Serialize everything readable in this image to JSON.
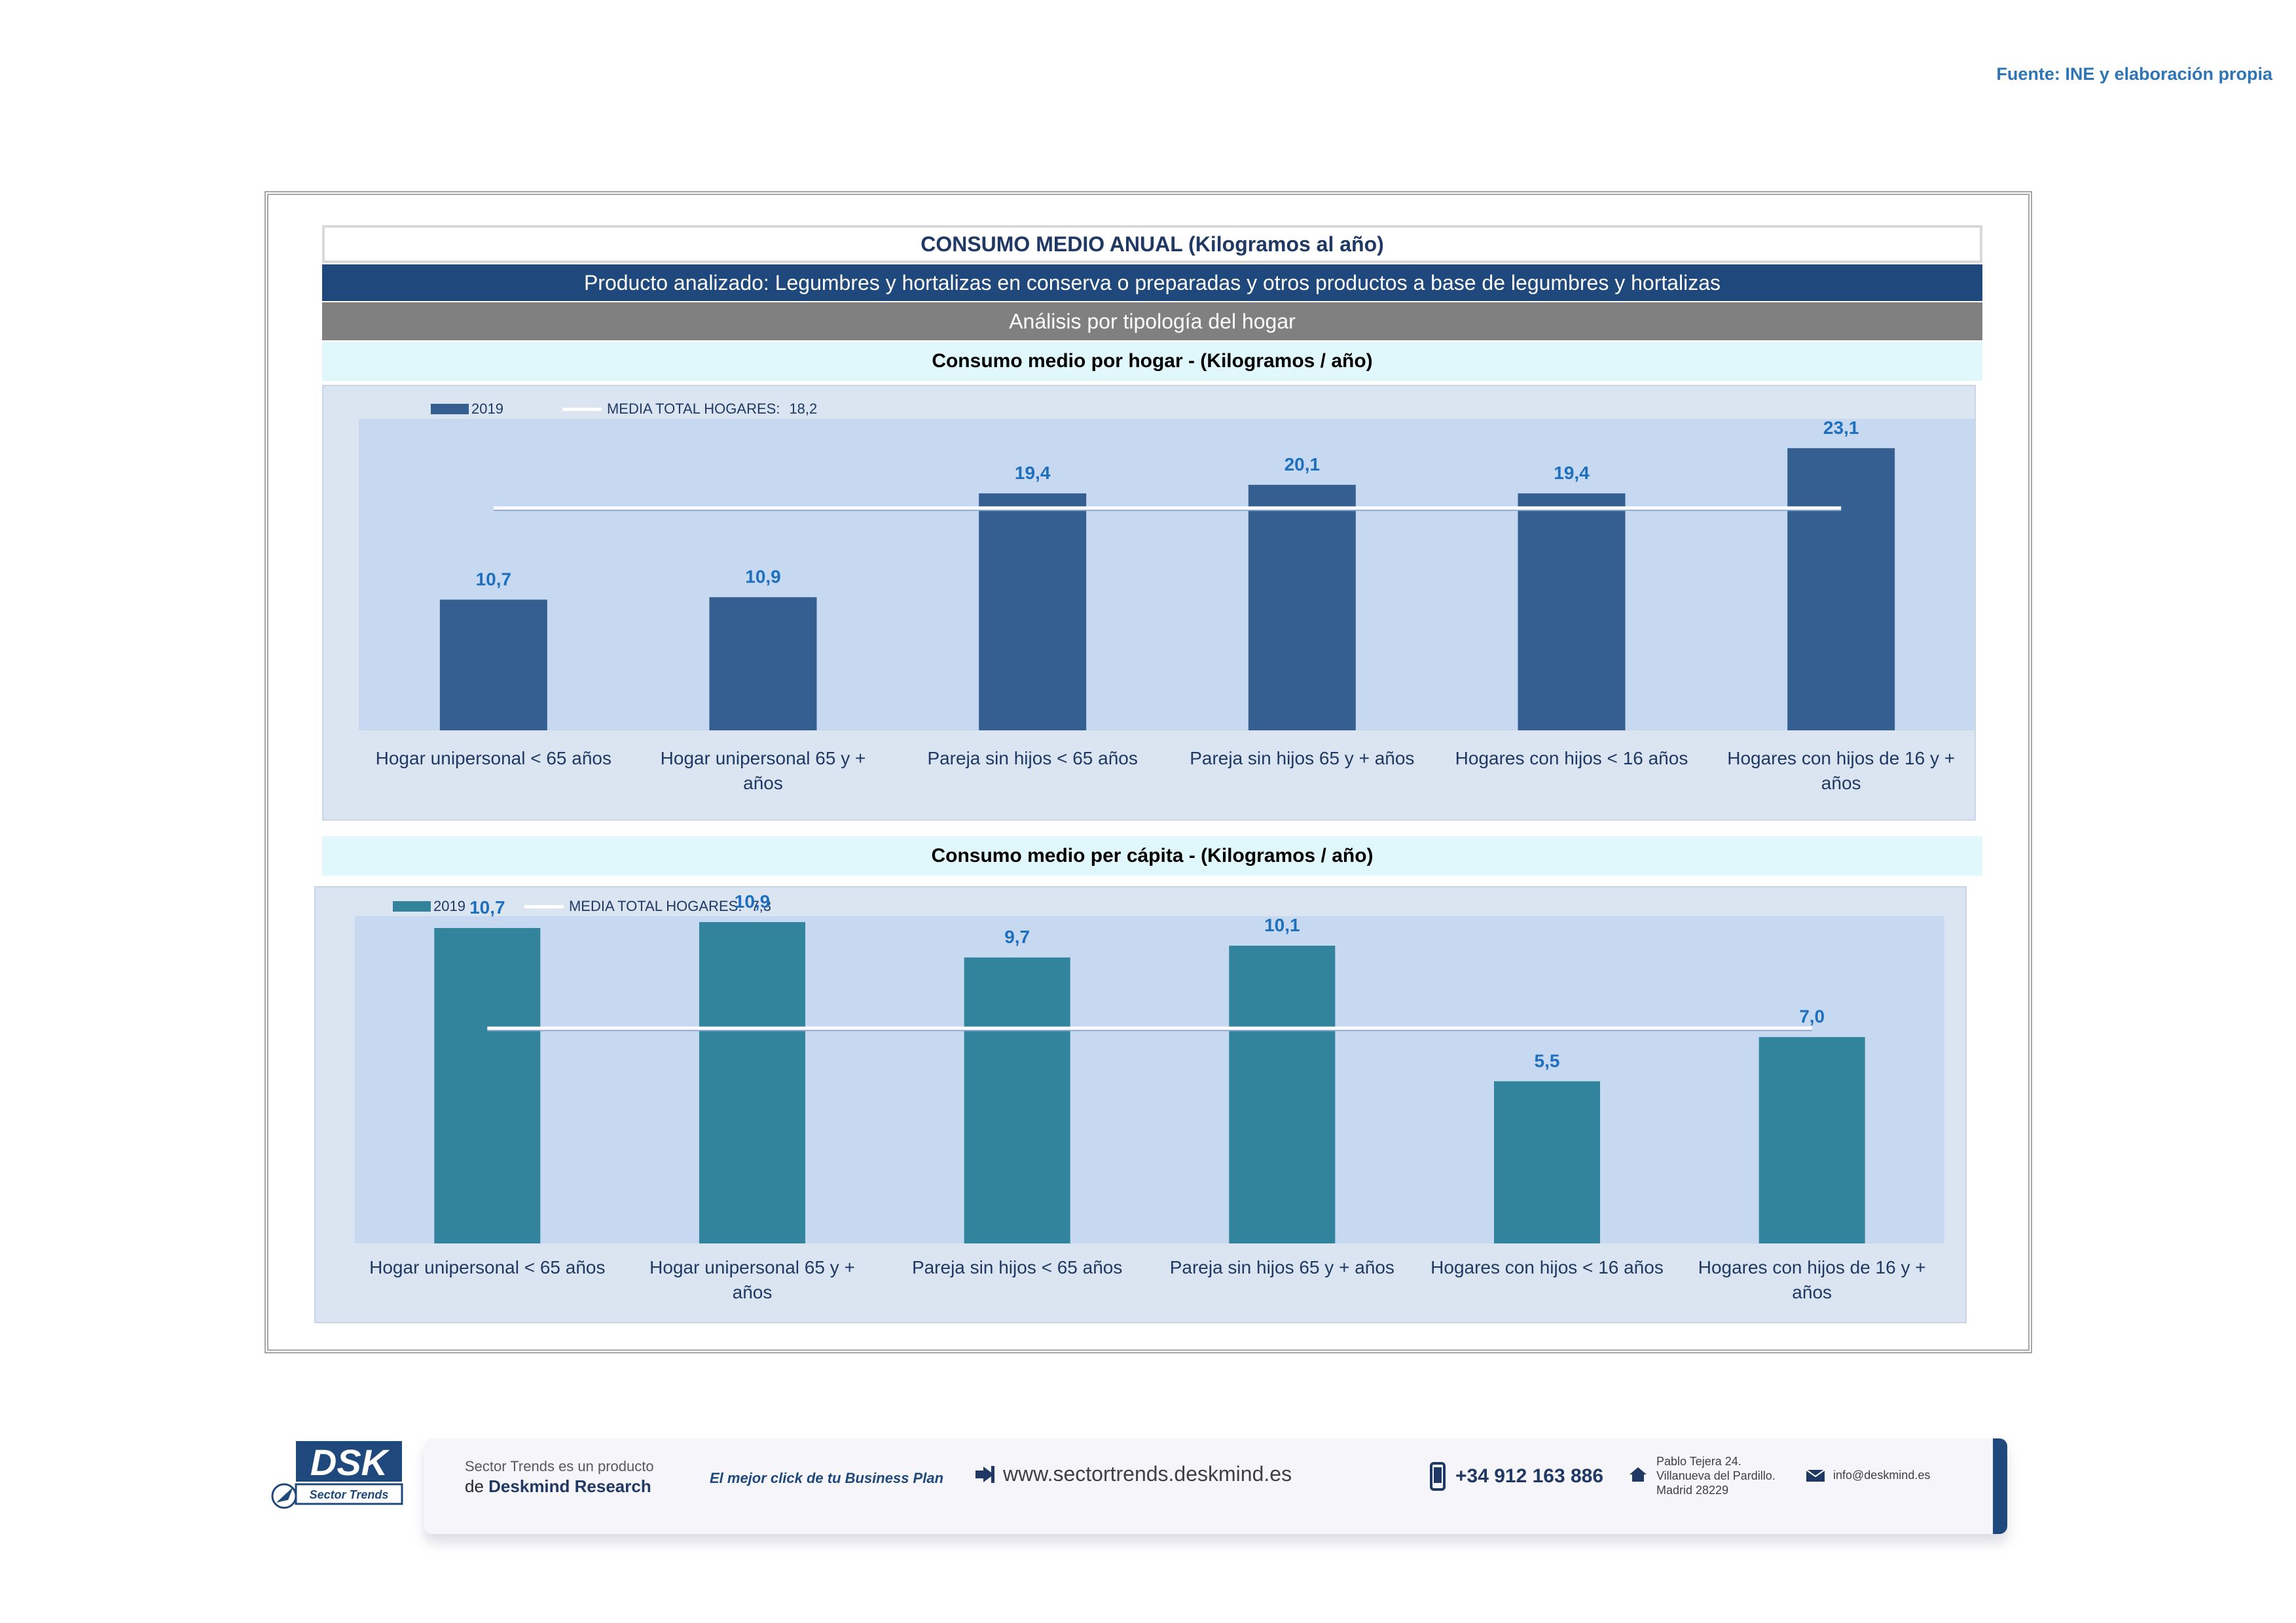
{
  "source": "Fuente: INE y elaboración propia",
  "header": {
    "title": "CONSUMO MEDIO ANUAL (Kilogramos al año)",
    "product": "Producto analizado: Legumbres y hortalizas en conserva o preparadas y otros productos a base de legumbres y hortalizas",
    "analysis": "Análisis por tipología del hogar"
  },
  "colors": {
    "bar1": "#355f91",
    "bar2": "#31849b",
    "label": "#1f6fbf"
  },
  "chart_data": [
    {
      "type": "bar",
      "title": "Consumo medio por hogar -  (Kilogramos / año)",
      "categories": [
        [
          "Hogar unipersonal < 65 años"
        ],
        [
          "Hogar unipersonal  65 y +",
          "años"
        ],
        [
          "Pareja sin hijos < 65 años"
        ],
        [
          "Pareja sin hijos 65 y + años"
        ],
        [
          "Hogares con hijos < 16 años"
        ],
        [
          "Hogares con hijos de 16 y +",
          "años"
        ]
      ],
      "series": [
        {
          "name": "2019",
          "values": [
            10.7,
            10.9,
            19.4,
            20.1,
            19.4,
            23.1
          ]
        }
      ],
      "value_labels": [
        "10,7",
        "10,9",
        "19,4",
        "20,1",
        "19,4",
        "23,1"
      ],
      "reference_line": {
        "label": "MEDIA TOTAL  HOGARES:",
        "value_label": "18,2",
        "value": 18.2
      },
      "ylim": [
        0,
        25.5
      ],
      "legend": "top-left",
      "grid": false
    },
    {
      "type": "bar",
      "title": "Consumo medio per cápita -  (Kilogramos / año)",
      "categories": [
        [
          "Hogar unipersonal < 65 años"
        ],
        [
          "Hogar unipersonal  65 y +",
          "años"
        ],
        [
          "Pareja sin hijos < 65 años"
        ],
        [
          "Pareja sin hijos 65 y + años"
        ],
        [
          "Hogares con hijos < 16 años"
        ],
        [
          "Hogares con hijos de 16 y +",
          "años"
        ]
      ],
      "series": [
        {
          "name": "2019",
          "values": [
            10.7,
            10.9,
            9.7,
            10.1,
            5.5,
            7.0
          ]
        }
      ],
      "value_labels": [
        "10,7",
        "10,9",
        "9,7",
        "10,1",
        "5,5",
        "7,0"
      ],
      "reference_line": {
        "label": "MEDIA TOTAL  HOGARES:",
        "value_label": "7,3",
        "value": 7.3
      },
      "ylim": [
        0,
        11.1
      ],
      "legend": "top-left",
      "grid": false
    }
  ],
  "footer": {
    "logo_text": "DSK",
    "logo_sub": "Sector Trends",
    "product_line": "Sector Trends es un producto",
    "by_prefix": "de",
    "by_brand": "Deskmind Research",
    "slogan": "El mejor click de tu Business Plan",
    "website": "www.sectortrends.deskmind.es",
    "phone": "+34 912 163 886",
    "address": [
      "Pablo Tejera 24.",
      "Villanueva del Pardillo.",
      "Madrid 28229"
    ],
    "email": "info@deskmind.es"
  }
}
